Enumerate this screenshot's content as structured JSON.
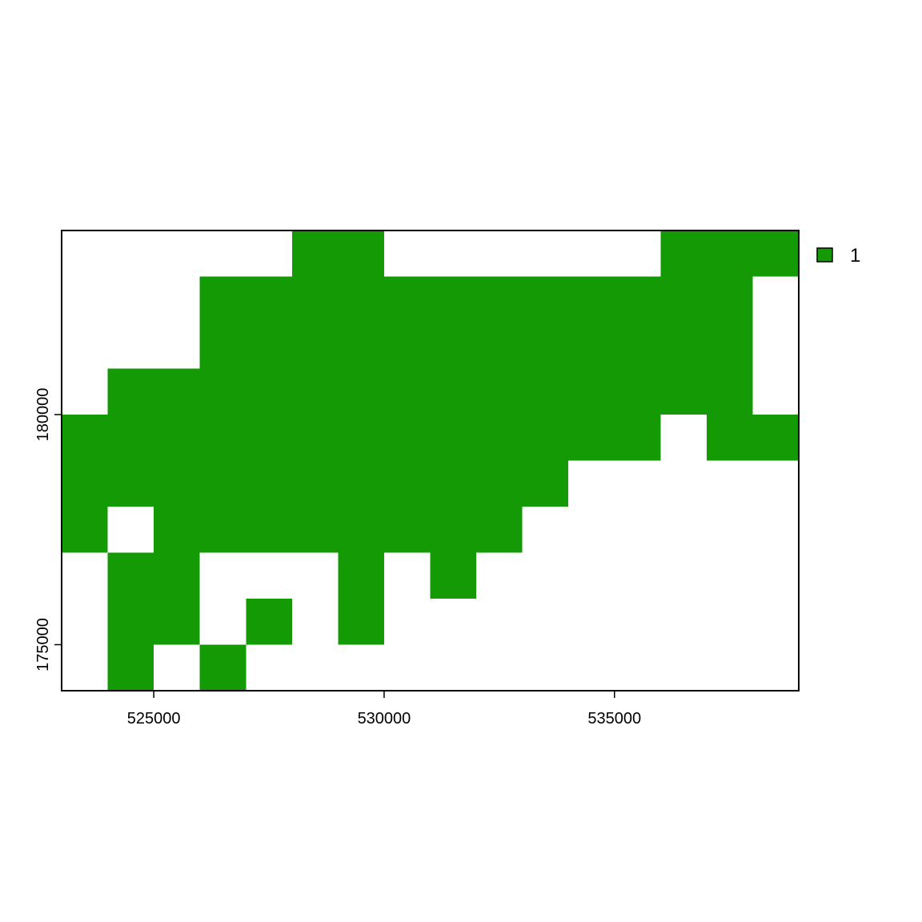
{
  "chart_data": {
    "type": "heatmap",
    "title": "",
    "xlabel": "",
    "ylabel": "",
    "xlim": [
      523000,
      539000
    ],
    "ylim": [
      174000,
      184000
    ],
    "cell_size": 1000,
    "x_ticks": [
      525000,
      530000,
      535000
    ],
    "x_tick_labels": [
      "525000",
      "530000",
      "535000"
    ],
    "y_ticks": [
      175000,
      180000
    ],
    "y_tick_labels": [
      "175000",
      "180000"
    ],
    "fill_color": "#149a04",
    "legend": {
      "position": "top-right",
      "entries": [
        {
          "value": "1",
          "label": "1",
          "color": "#149a04"
        }
      ]
    },
    "rows_top_to_bottom": [
      "0000011000000111",
      "0001111111111110",
      "0001111111111110",
      "0111111111111110",
      "1111111111111011",
      "1111111111100000",
      "1011111111000000",
      "0110001010000000",
      "0110101000000000",
      "0101000000000000"
    ]
  }
}
